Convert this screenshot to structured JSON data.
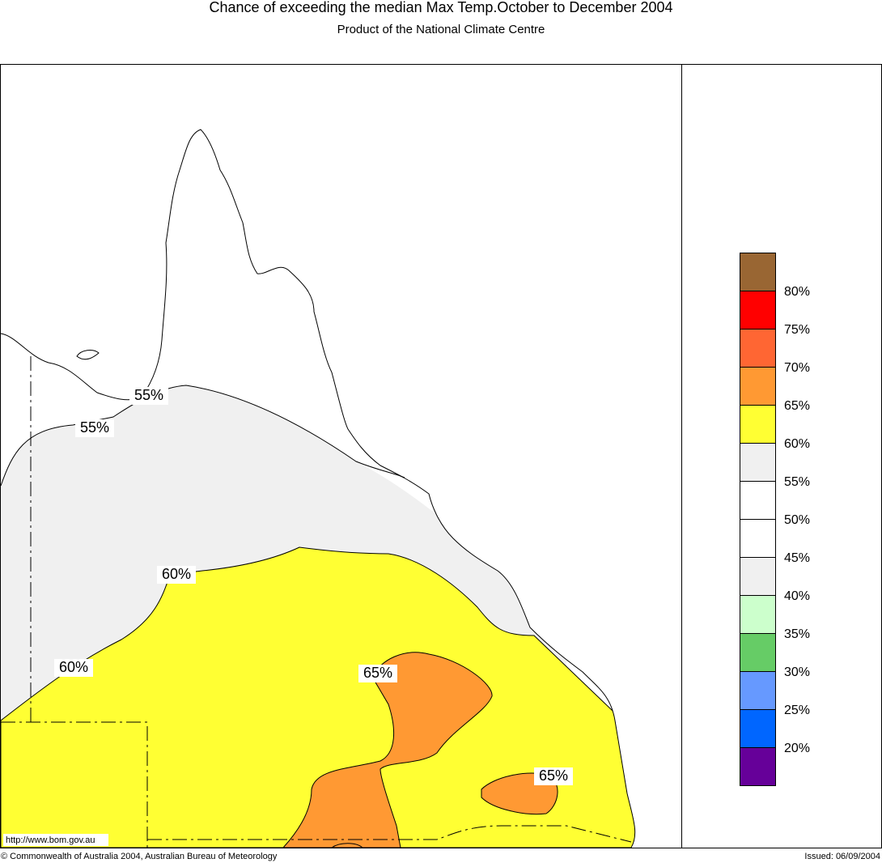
{
  "header": {
    "title": "Chance of exceeding the median Max Temp.October to December 2004",
    "subtitle": "Product of the National Climate Centre"
  },
  "contour_labels": [
    "55%",
    "55%",
    "60%",
    "60%",
    "65%",
    "65%"
  ],
  "legend": {
    "colors": [
      "#996633",
      "#ff0000",
      "#ff6633",
      "#ff9933",
      "#ffff33",
      "#f0f0f0",
      "#ffffff",
      "#ffffff",
      "#f0f0f0",
      "#ccffcc",
      "#66cc66",
      "#6699ff",
      "#0066ff",
      "#660099"
    ],
    "labels": [
      "80%",
      "75%",
      "70%",
      "65%",
      "60%",
      "55%",
      "50%",
      "45%",
      "40%",
      "35%",
      "30%",
      "25%",
      "20%"
    ]
  },
  "footer": {
    "url": "http://www.bom.gov.au",
    "copyright": "© Commonwealth of Australia 2004, Australian Bureau of Meteorology",
    "issued": "Issued: 06/09/2004"
  }
}
